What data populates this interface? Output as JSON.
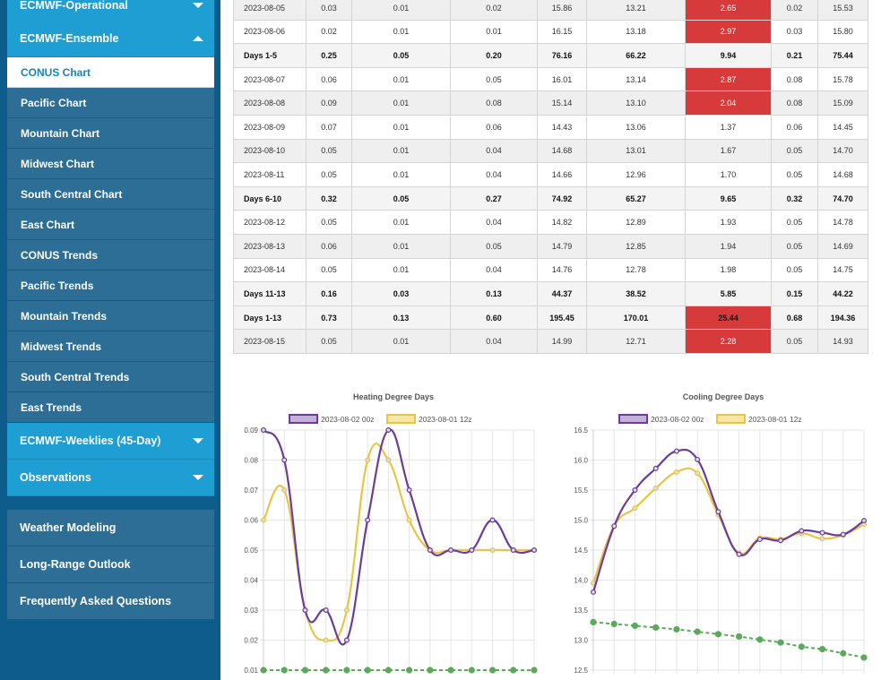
{
  "sidebar": {
    "top_group_label": "ECMWF-Operational",
    "ensemble_label": "ECMWF-Ensemble",
    "ensemble_items": [
      {
        "label": "CONUS Chart"
      },
      {
        "label": "Pacific Chart"
      },
      {
        "label": "Mountain Chart"
      },
      {
        "label": "Midwest Chart"
      },
      {
        "label": "South Central Chart"
      },
      {
        "label": "East Chart"
      },
      {
        "label": "CONUS Trends"
      },
      {
        "label": "Pacific Trends"
      },
      {
        "label": "Mountain Trends"
      },
      {
        "label": "Midwest Trends"
      },
      {
        "label": "South Central Trends"
      },
      {
        "label": "East Trends"
      }
    ],
    "weeklies_label": "ECMWF-Weeklies (45-Day)",
    "observations_label": "Observations",
    "bottom_items": [
      {
        "label": "Weather Modeling"
      },
      {
        "label": "Long-Range Outlook"
      },
      {
        "label": "Frequently Asked Questions"
      }
    ]
  },
  "table": {
    "rows": [
      {
        "type": "data",
        "cells": [
          "2023-08-05",
          "0.03",
          "0.01",
          "0.02",
          "15.86",
          "13.21",
          "2.65",
          "0.02",
          "15.53"
        ],
        "hl": true
      },
      {
        "type": "data",
        "cells": [
          "2023-08-06",
          "0.02",
          "0.01",
          "0.01",
          "16.15",
          "13.18",
          "2.97",
          "0.03",
          "15.80"
        ],
        "hl": true
      },
      {
        "type": "sum",
        "cells": [
          "Days 1-5",
          "0.25",
          "0.05",
          "0.20",
          "76.16",
          "66.22",
          "9.94",
          "0.21",
          "75.44"
        ],
        "hl": false
      },
      {
        "type": "data",
        "cells": [
          "2023-08-07",
          "0.06",
          "0.01",
          "0.05",
          "16.01",
          "13.14",
          "2.87",
          "0.08",
          "15.78"
        ],
        "hl": true
      },
      {
        "type": "data",
        "cells": [
          "2023-08-08",
          "0.09",
          "0.01",
          "0.08",
          "15.14",
          "13.10",
          "2.04",
          "0.08",
          "15.09"
        ],
        "hl": true
      },
      {
        "type": "data",
        "cells": [
          "2023-08-09",
          "0.07",
          "0.01",
          "0.06",
          "14.43",
          "13.06",
          "1.37",
          "0.06",
          "14.45"
        ],
        "hl": false
      },
      {
        "type": "data",
        "cells": [
          "2023-08-10",
          "0.05",
          "0.01",
          "0.04",
          "14.68",
          "13.01",
          "1.67",
          "0.05",
          "14.70"
        ],
        "hl": false
      },
      {
        "type": "data",
        "cells": [
          "2023-08-11",
          "0.05",
          "0.01",
          "0.04",
          "14.66",
          "12.96",
          "1.70",
          "0.05",
          "14.68"
        ],
        "hl": false
      },
      {
        "type": "sum",
        "cells": [
          "Days 6-10",
          "0.32",
          "0.05",
          "0.27",
          "74.92",
          "65.27",
          "9.65",
          "0.32",
          "74.70"
        ],
        "hl": false
      },
      {
        "type": "data",
        "cells": [
          "2023-08-12",
          "0.05",
          "0.01",
          "0.04",
          "14.82",
          "12.89",
          "1.93",
          "0.05",
          "14.78"
        ],
        "hl": false
      },
      {
        "type": "data",
        "cells": [
          "2023-08-13",
          "0.06",
          "0.01",
          "0.05",
          "14.79",
          "12.85",
          "1.94",
          "0.05",
          "14.69"
        ],
        "hl": false
      },
      {
        "type": "data",
        "cells": [
          "2023-08-14",
          "0.05",
          "0.01",
          "0.04",
          "14.76",
          "12.78",
          "1.98",
          "0.05",
          "14.75"
        ],
        "hl": false
      },
      {
        "type": "sum",
        "cells": [
          "Days 11-13",
          "0.16",
          "0.03",
          "0.13",
          "44.37",
          "38.52",
          "5.85",
          "0.15",
          "44.22"
        ],
        "hl": false
      },
      {
        "type": "sum",
        "cells": [
          "Days 1-13",
          "0.73",
          "0.13",
          "0.60",
          "195.45",
          "170.01",
          "25.44",
          "0.68",
          "194.36"
        ],
        "hl": true
      },
      {
        "type": "data",
        "cells": [
          "2023-08-15",
          "0.05",
          "0.01",
          "0.04",
          "14.99",
          "12.71",
          "2.28",
          "0.05",
          "14.93"
        ],
        "hl": true
      }
    ]
  },
  "colors": {
    "series_a": "#6a3d9a",
    "series_b": "#e8c547",
    "series_diff": "#5aaa5a",
    "highlight": "#d63a3a"
  },
  "chart_data": [
    {
      "type": "line",
      "title": "Heating Degree Days",
      "ylim": [
        0.01,
        0.09
      ],
      "yticks": [
        "0.09",
        "0.08",
        "0.07",
        "0.06",
        "0.05",
        "0.04",
        "0.03",
        "0.02",
        "0.01"
      ],
      "series": [
        {
          "name": "2023-08-02 00z",
          "values": [
            0.09,
            0.08,
            0.03,
            0.03,
            0.02,
            0.06,
            0.09,
            0.07,
            0.05,
            0.05,
            0.05,
            0.06,
            0.05,
            0.05
          ]
        },
        {
          "name": "2023-08-01 12z",
          "values": [
            0.06,
            0.07,
            0.03,
            0.02,
            0.03,
            0.08,
            0.08,
            0.06,
            0.05,
            0.05,
            0.05,
            0.05,
            0.05,
            0.05
          ]
        },
        {
          "name": "",
          "values": [
            0.01,
            0.01,
            0.01,
            0.01,
            0.01,
            0.01,
            0.01,
            0.01,
            0.01,
            0.01,
            0.01,
            0.01,
            0.01,
            0.01
          ]
        }
      ],
      "grid": true,
      "legend": "top"
    },
    {
      "type": "line",
      "title": "Cooling Degree Days",
      "ylim": [
        12.5,
        16.5
      ],
      "yticks": [
        "16.5",
        "16.0",
        "15.5",
        "15.0",
        "14.5",
        "14.0",
        "13.5",
        "13.0",
        "12.5"
      ],
      "series": [
        {
          "name": "2023-08-02 00z",
          "values": [
            13.8,
            14.9,
            15.5,
            15.86,
            16.15,
            16.01,
            15.14,
            14.43,
            14.68,
            14.66,
            14.82,
            14.79,
            14.76,
            14.99
          ]
        },
        {
          "name": "2023-08-01 12z",
          "values": [
            13.95,
            14.9,
            15.2,
            15.53,
            15.8,
            15.78,
            15.09,
            14.45,
            14.7,
            14.68,
            14.78,
            14.69,
            14.75,
            14.93
          ]
        },
        {
          "name": "",
          "values": [
            13.3,
            13.27,
            13.24,
            13.21,
            13.18,
            13.14,
            13.1,
            13.06,
            13.01,
            12.96,
            12.89,
            12.85,
            12.78,
            12.71
          ]
        }
      ],
      "grid": true,
      "legend": "top"
    }
  ]
}
